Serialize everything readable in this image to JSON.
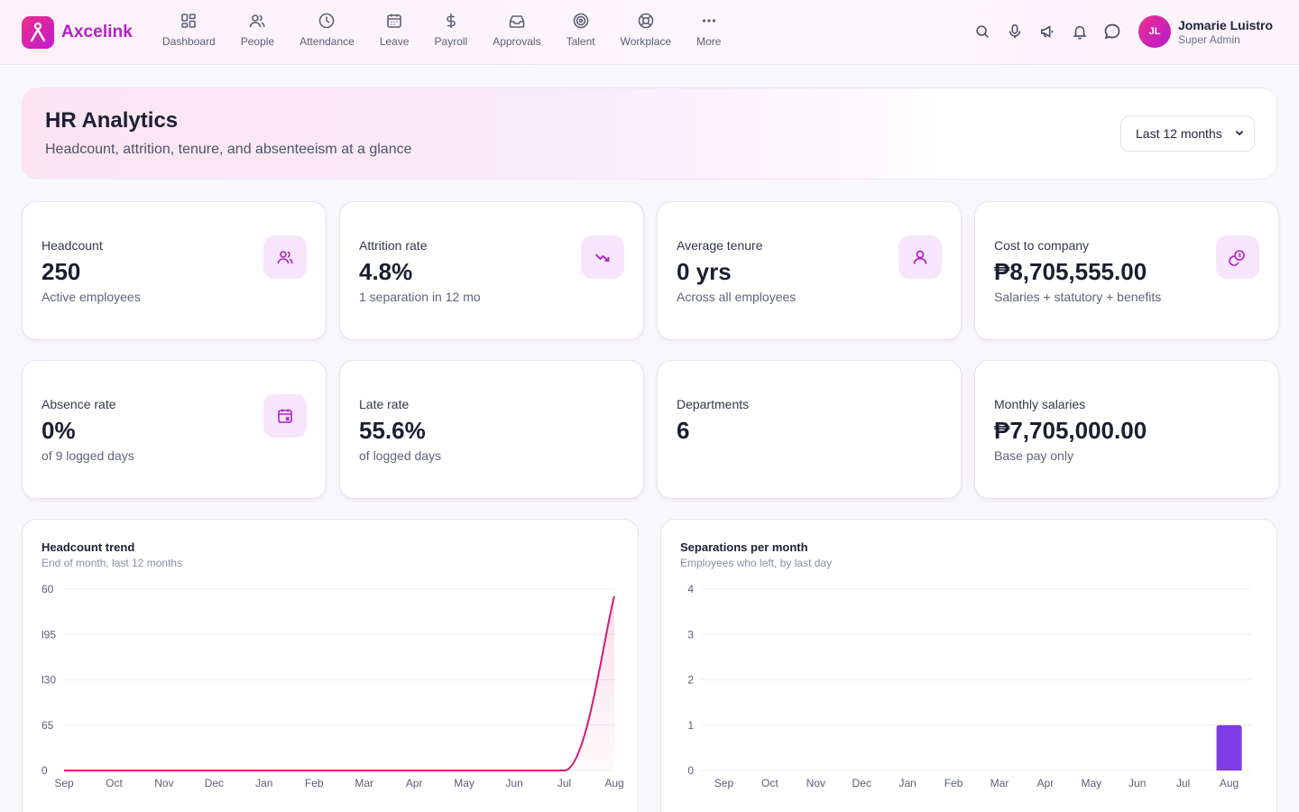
{
  "brand": {
    "name": "Axcelink"
  },
  "nav": [
    {
      "label": "Dashboard",
      "icon": "dashboard-icon"
    },
    {
      "label": "People",
      "icon": "people-icon"
    },
    {
      "label": "Attendance",
      "icon": "clock-icon"
    },
    {
      "label": "Leave",
      "icon": "calendar-icon"
    },
    {
      "label": "Payroll",
      "icon": "dollar-icon"
    },
    {
      "label": "Approvals",
      "icon": "inbox-icon"
    },
    {
      "label": "Talent",
      "icon": "target-icon"
    },
    {
      "label": "Workplace",
      "icon": "lifebuoy-icon"
    },
    {
      "label": "More",
      "icon": "more-icon"
    }
  ],
  "user": {
    "initials": "JL",
    "name": "Jomarie Luistro",
    "role": "Super Admin"
  },
  "page": {
    "title": "HR Analytics",
    "subtitle": "Headcount, attrition, tenure, and absenteeism at a glance",
    "range": "Last 12 months"
  },
  "kpis": [
    {
      "label": "Headcount",
      "value": "250",
      "sub": "Active employees",
      "icon": "people-icon"
    },
    {
      "label": "Attrition rate",
      "value": "4.8%",
      "sub": "1 separation in 12 mo",
      "icon": "trending-down-icon"
    },
    {
      "label": "Average tenure",
      "value": "0 yrs",
      "sub": "Across all employees",
      "icon": "user-icon"
    },
    {
      "label": "Cost to company",
      "value": "₱8,705,555.00",
      "sub": "Salaries + statutory + benefits",
      "icon": "coins-icon"
    },
    {
      "label": "Absence rate",
      "value": "0%",
      "sub": "of 9 logged days",
      "icon": "calendar-x-icon"
    },
    {
      "label": "Late rate",
      "value": "55.6%",
      "sub": "of logged days",
      "icon": ""
    },
    {
      "label": "Departments",
      "value": "6",
      "sub": "",
      "icon": ""
    },
    {
      "label": "Monthly salaries",
      "value": "₱7,705,000.00",
      "sub": "Base pay only",
      "icon": ""
    }
  ],
  "chart_data": [
    {
      "type": "area",
      "title": "Headcount trend",
      "subtitle": "End of month, last 12 months",
      "categories": [
        "Sep",
        "Oct",
        "Nov",
        "Dec",
        "Jan",
        "Feb",
        "Mar",
        "Apr",
        "May",
        "Jun",
        "Jul",
        "Aug"
      ],
      "values": [
        0,
        0,
        0,
        0,
        0,
        0,
        0,
        0,
        0,
        0,
        0,
        250
      ],
      "y_ticks": [
        "0",
        "65",
        "l30",
        "l95",
        "60"
      ],
      "ylim": [
        0,
        260
      ],
      "color": "#d81b72",
      "grid": true
    },
    {
      "type": "bar",
      "title": "Separations per month",
      "subtitle": "Employees who left, by last day",
      "categories": [
        "Sep",
        "Oct",
        "Nov",
        "Dec",
        "Jan",
        "Feb",
        "Mar",
        "Apr",
        "May",
        "Jun",
        "Jul",
        "Aug"
      ],
      "values": [
        0,
        0,
        0,
        0,
        0,
        0,
        0,
        0,
        0,
        0,
        0,
        1
      ],
      "y_ticks": [
        "0",
        "1",
        "2",
        "3",
        "4"
      ],
      "ylim": [
        0,
        4
      ],
      "color": "#7e3be6",
      "grid": true
    }
  ]
}
